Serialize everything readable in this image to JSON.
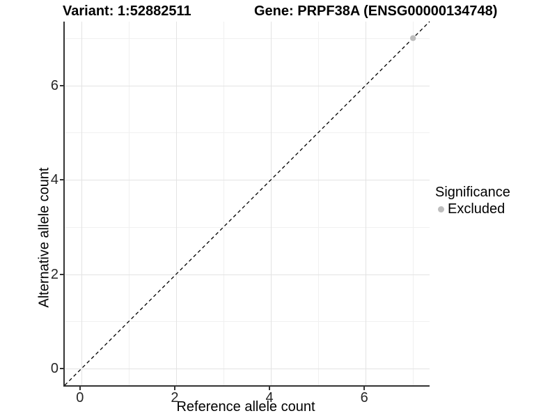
{
  "chart_data": {
    "type": "scatter",
    "titles": {
      "left": "Variant: 1:52882511",
      "right": "Gene: PRPF38A (ENSG00000134748)"
    },
    "xlabel": "Reference allele count",
    "ylabel": "Alternative allele count",
    "xlim": [
      -0.35,
      7.35
    ],
    "ylim": [
      -0.35,
      7.35
    ],
    "x_major_ticks": [
      0,
      2,
      4,
      6
    ],
    "y_major_ticks": [
      0,
      2,
      4,
      6
    ],
    "x_minor_ticks": [
      1,
      3,
      5,
      7
    ],
    "y_minor_ticks": [
      1,
      3,
      5,
      7
    ],
    "grid": "major+minor",
    "reference_line": {
      "type": "identity",
      "style": "dashed",
      "color": "#000000",
      "from": [
        -0.35,
        -0.35
      ],
      "to": [
        7.35,
        7.35
      ]
    },
    "series": [
      {
        "name": "Excluded",
        "color": "#bdbdbd",
        "marker": "circle",
        "points": [
          {
            "x": 7,
            "y": 7
          }
        ]
      }
    ],
    "legend": {
      "title": "Significance",
      "position": "right",
      "entries": [
        {
          "label": "Excluded",
          "color": "#bdbdbd"
        }
      ]
    }
  }
}
